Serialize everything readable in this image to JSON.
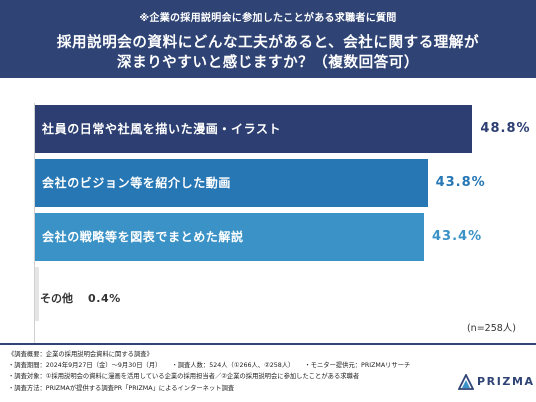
{
  "header": {
    "note": "※企業の採用説明会に参加したことがある求職者に質問",
    "title_line1": "採用説明会の資料にどんな工夫があると、会社に関する理解が",
    "title_line2": "深まりやすいと感じますか？（複数回答可）"
  },
  "colors": {
    "header_bg": "#2f4475",
    "bar_dark": "#2d3f72",
    "bar_mid": "#2777b5",
    "bar_light": "#3a92c6",
    "other_bar": "#e5e5e5"
  },
  "chart_data": {
    "type": "bar",
    "orientation": "horizontal",
    "categories": [
      "社員の日常や社風を描いた漫画・イラスト",
      "会社のビジョン等を紹介した動画",
      "会社の戦略等を図表でまとめた解説",
      "その他"
    ],
    "values": [
      48.8,
      43.8,
      43.4,
      0.4
    ],
    "value_labels": [
      "48.8%",
      "43.8%",
      "43.4%",
      "0.4%"
    ],
    "unit": "%",
    "xlim": [
      0,
      55
    ],
    "grid": false,
    "legend": "none",
    "n_label": "(n=258人)"
  },
  "footer": {
    "title": "《調査概要：企業の採用説明会資料に関する調査》",
    "period": "・調査期間：2024年9月27日（金）〜9月30日（月）",
    "count": "・調査人数：524人（①266人、②258人）",
    "monitor": "・モニター提供元：PRIZMAリサーチ",
    "target": "・調査対象：①採用説明会の資料に漫画を活用している企業の採用担当者／②企業の採用説明会に参加したことがある求職者",
    "method": "・調査方法：PRIZMAが提供する調査PR「PRIZMA」によるインターネット調査"
  },
  "logo": {
    "text": "PRIZMA",
    "icon": "prizma-triangle-icon"
  }
}
